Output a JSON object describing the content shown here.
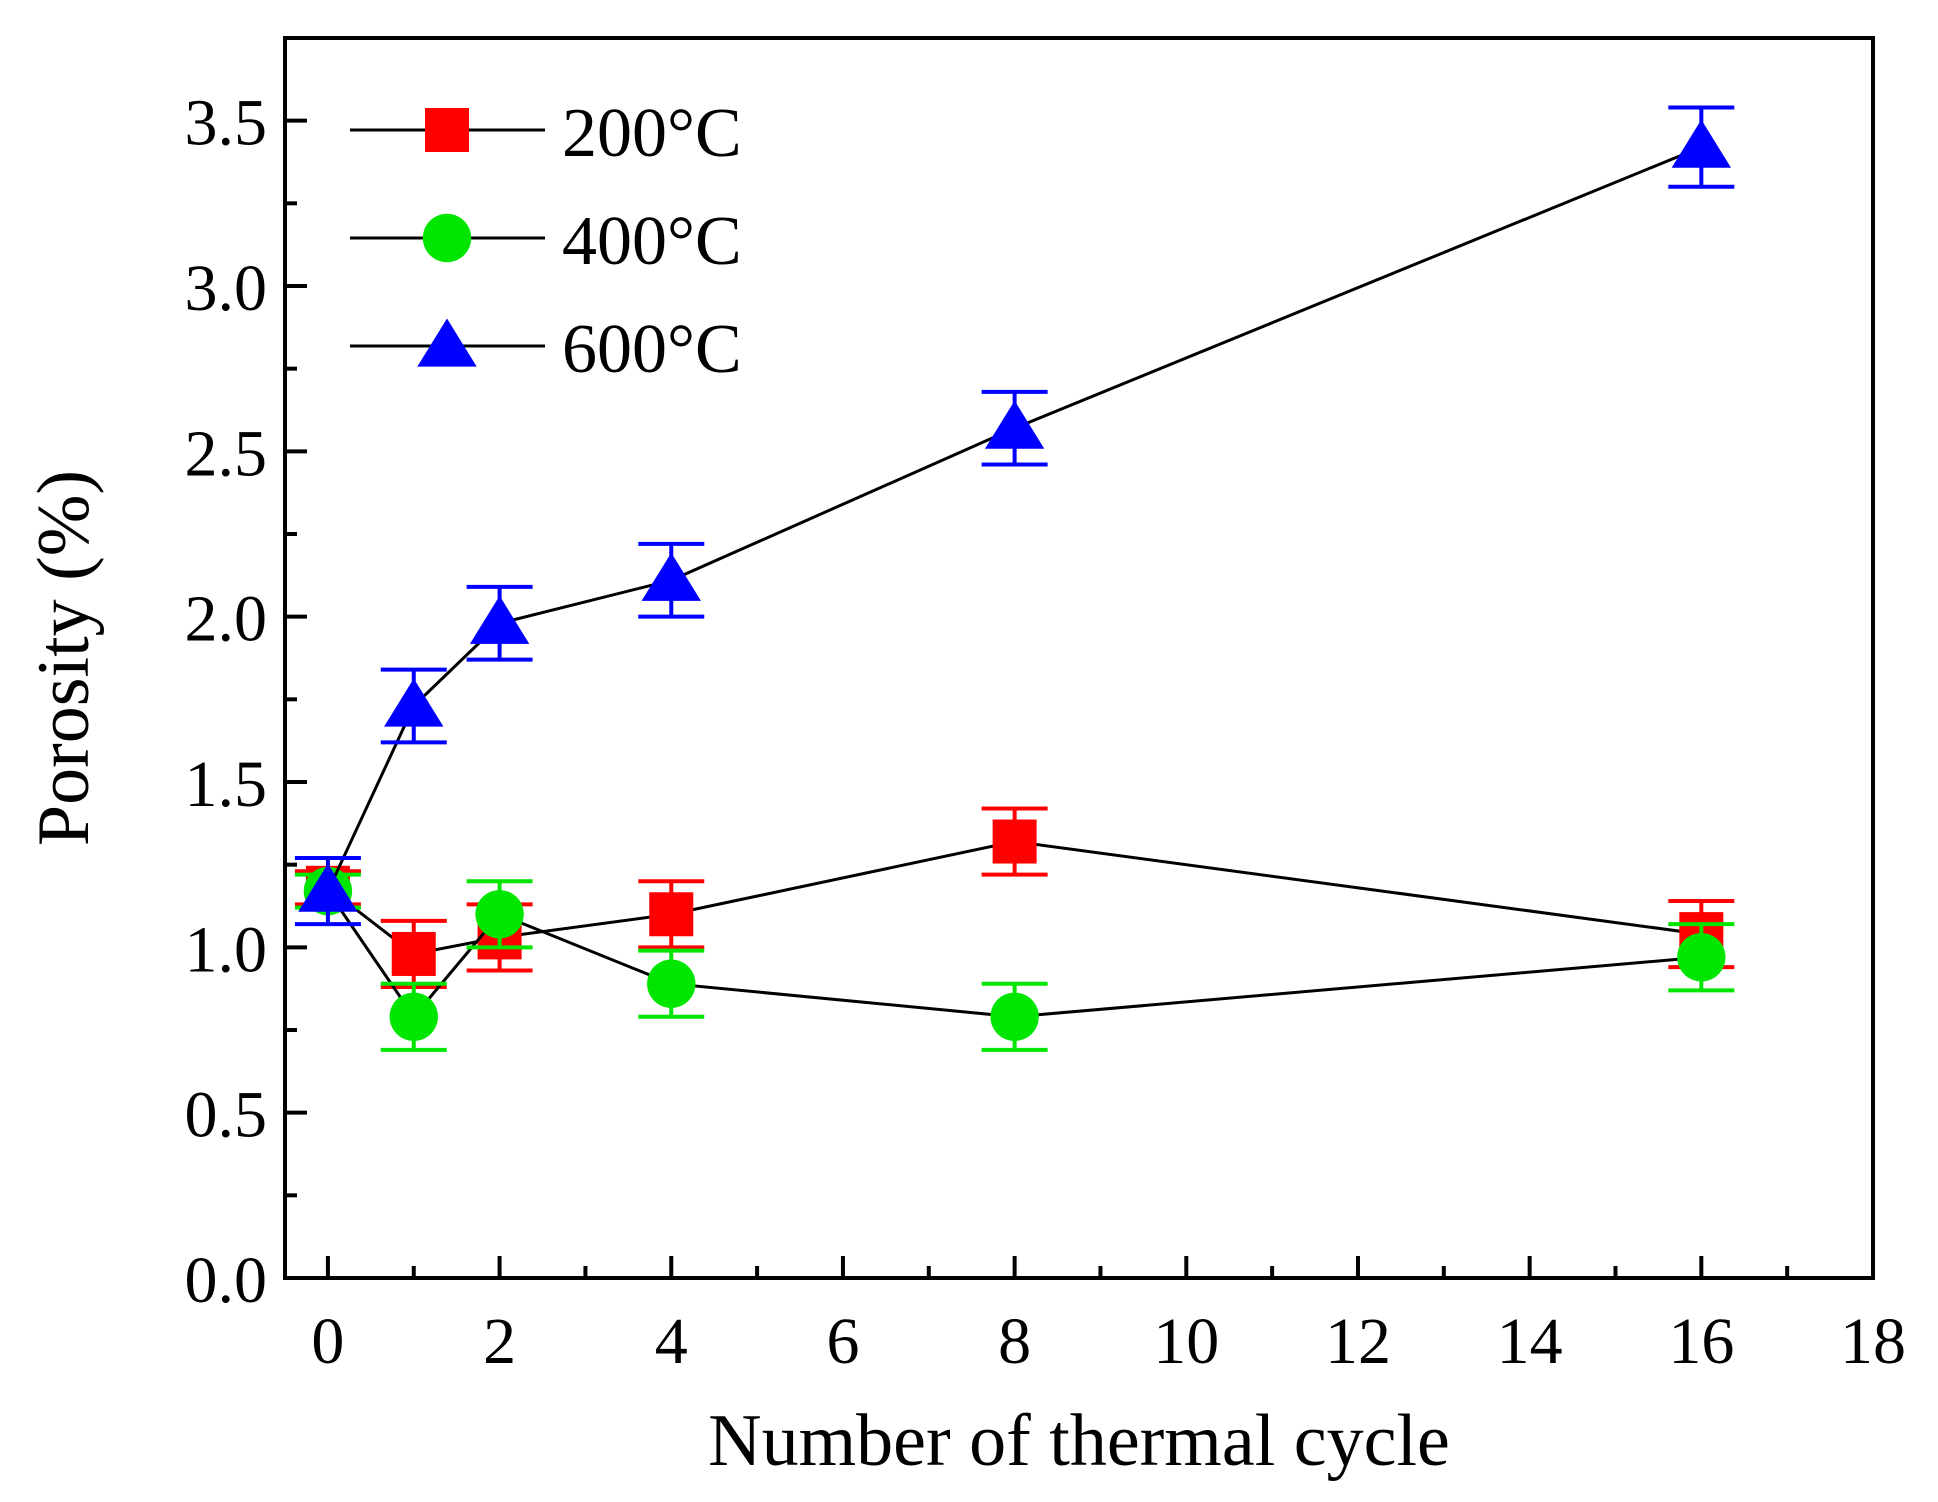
{
  "chart_data": {
    "type": "line",
    "title": "",
    "xlabel": "Number of thermal cycle",
    "ylabel": "Porosity (%)",
    "xlim": [
      -0.5,
      18
    ],
    "ylim": [
      0.0,
      3.75
    ],
    "x_ticks": [
      0,
      2,
      4,
      6,
      8,
      10,
      12,
      14,
      16,
      18
    ],
    "x_tick_labels": [
      "0",
      "2",
      "4",
      "6",
      "8",
      "10",
      "12",
      "14",
      "16",
      "18"
    ],
    "y_ticks": [
      0.0,
      0.5,
      1.0,
      1.5,
      2.0,
      2.5,
      3.0,
      3.5
    ],
    "y_tick_labels": [
      "0.0",
      "0.5",
      "1.0",
      "1.5",
      "2.0",
      "2.5",
      "3.0",
      "3.5"
    ],
    "legend_position": "top-left",
    "grid": false,
    "x": [
      0,
      1,
      2,
      4,
      8,
      16
    ],
    "series": [
      {
        "name": "200°C",
        "marker": "square",
        "color": "#ff0000",
        "values": [
          1.18,
          0.98,
          1.03,
          1.1,
          1.32,
          1.04
        ],
        "errors": [
          0.05,
          0.1,
          0.1,
          0.1,
          0.1,
          0.1
        ]
      },
      {
        "name": "400°C",
        "marker": "circle",
        "color": "#00e600",
        "values": [
          1.17,
          0.79,
          1.1,
          0.89,
          0.79,
          0.97
        ],
        "errors": [
          0.05,
          0.1,
          0.1,
          0.1,
          0.1,
          0.1
        ]
      },
      {
        "name": "600°C",
        "marker": "triangle",
        "color": "#0000ff",
        "values": [
          1.17,
          1.73,
          1.98,
          2.11,
          2.57,
          3.42
        ],
        "errors": [
          0.1,
          0.11,
          0.11,
          0.11,
          0.11,
          0.12
        ]
      }
    ]
  }
}
